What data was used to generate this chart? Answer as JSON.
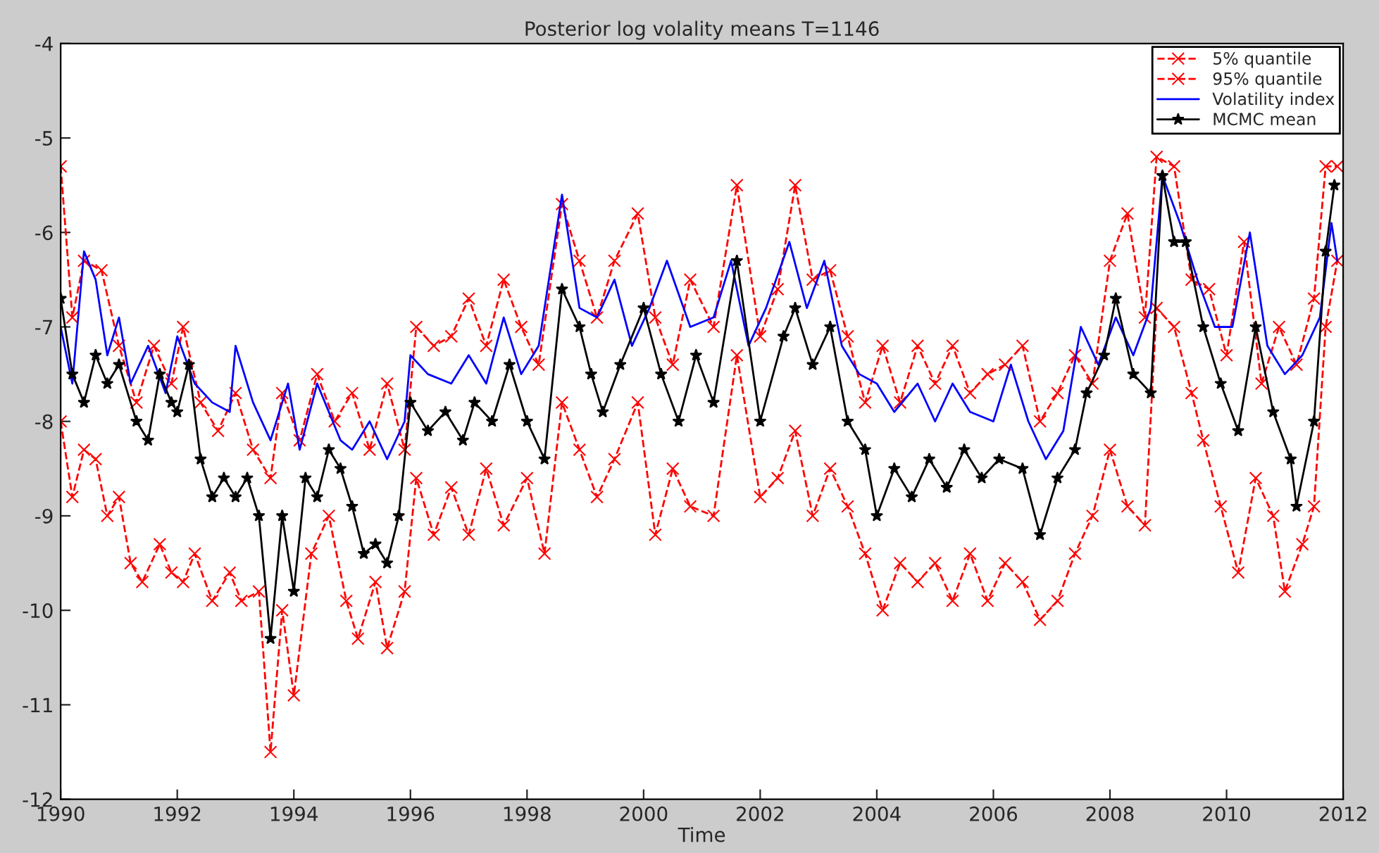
{
  "chart_data": {
    "type": "line",
    "title": "Posterior log volality means T=1146",
    "xlabel": "Time",
    "xlim": [
      1990,
      2012
    ],
    "xticks": [
      1990,
      1992,
      1994,
      1996,
      1998,
      2000,
      2002,
      2004,
      2006,
      2008,
      2010,
      2012
    ],
    "ylim": [
      -12,
      -4
    ],
    "yticks": [
      -12,
      -11,
      -10,
      -9,
      -8,
      -7,
      -6,
      -5,
      -4
    ],
    "grid": false,
    "legend": "top right",
    "series": [
      {
        "name": "5% quantile",
        "color": "#ff0000",
        "marker": "cross",
        "line_style": "dashed",
        "x": [
          1990.0,
          1990.2,
          1990.4,
          1990.6,
          1990.8,
          1991.0,
          1991.2,
          1991.4,
          1991.7,
          1991.9,
          1992.1,
          1992.3,
          1992.6,
          1992.9,
          1993.1,
          1993.4,
          1993.6,
          1993.8,
          1994.0,
          1994.3,
          1994.6,
          1994.9,
          1995.1,
          1995.4,
          1995.6,
          1995.9,
          1996.1,
          1996.4,
          1996.7,
          1997.0,
          1997.3,
          1997.6,
          1998.0,
          1998.3,
          1998.6,
          1998.9,
          1999.2,
          1999.5,
          1999.9,
          2000.2,
          2000.5,
          2000.8,
          2001.2,
          2001.6,
          2002.0,
          2002.3,
          2002.6,
          2002.9,
          2003.2,
          2003.5,
          2003.8,
          2004.1,
          2004.4,
          2004.7,
          2005.0,
          2005.3,
          2005.6,
          2005.9,
          2006.2,
          2006.5,
          2006.8,
          2007.1,
          2007.4,
          2007.7,
          2008.0,
          2008.3,
          2008.6,
          2008.8,
          2009.1,
          2009.4,
          2009.6,
          2009.9,
          2010.2,
          2010.5,
          2010.8,
          2011.0,
          2011.3,
          2011.5,
          2011.7,
          2011.9
        ],
        "values": [
          -8.0,
          -8.8,
          -8.3,
          -8.4,
          -9.0,
          -8.8,
          -9.5,
          -9.7,
          -9.3,
          -9.6,
          -9.7,
          -9.4,
          -9.9,
          -9.6,
          -9.9,
          -9.8,
          -11.5,
          -10.0,
          -10.9,
          -9.4,
          -9.0,
          -9.9,
          -10.3,
          -9.7,
          -10.4,
          -9.8,
          -8.6,
          -9.2,
          -8.7,
          -9.2,
          -8.5,
          -9.1,
          -8.6,
          -9.4,
          -7.8,
          -8.3,
          -8.8,
          -8.4,
          -7.8,
          -9.2,
          -8.5,
          -8.9,
          -9.0,
          -7.3,
          -8.8,
          -8.6,
          -8.1,
          -9.0,
          -8.5,
          -8.9,
          -9.4,
          -10.0,
          -9.5,
          -9.7,
          -9.5,
          -9.9,
          -9.4,
          -9.9,
          -9.5,
          -9.7,
          -10.1,
          -9.9,
          -9.4,
          -9.0,
          -8.3,
          -8.9,
          -9.1,
          -6.8,
          -7.0,
          -7.7,
          -8.2,
          -8.9,
          -9.6,
          -8.6,
          -9.0,
          -9.8,
          -9.3,
          -8.9,
          -7.0,
          -6.3
        ]
      },
      {
        "name": "95% quantile",
        "color": "#ff0000",
        "marker": "cross",
        "line_style": "dashed",
        "x": [
          1990.0,
          1990.2,
          1990.4,
          1990.7,
          1991.0,
          1991.3,
          1991.6,
          1991.9,
          1992.1,
          1992.4,
          1992.7,
          1993.0,
          1993.3,
          1993.6,
          1993.8,
          1994.1,
          1994.4,
          1994.7,
          1995.0,
          1995.3,
          1995.6,
          1995.9,
          1996.1,
          1996.4,
          1996.7,
          1997.0,
          1997.3,
          1997.6,
          1997.9,
          1998.2,
          1998.6,
          1998.9,
          1999.2,
          1999.5,
          1999.9,
          2000.2,
          2000.5,
          2000.8,
          2001.2,
          2001.6,
          2002.0,
          2002.3,
          2002.6,
          2002.9,
          2003.2,
          2003.5,
          2003.8,
          2004.1,
          2004.4,
          2004.7,
          2005.0,
          2005.3,
          2005.6,
          2005.9,
          2006.2,
          2006.5,
          2006.8,
          2007.1,
          2007.4,
          2007.7,
          2008.0,
          2008.3,
          2008.6,
          2008.8,
          2009.1,
          2009.4,
          2009.7,
          2010.0,
          2010.3,
          2010.6,
          2010.9,
          2011.2,
          2011.5,
          2011.7,
          2011.9
        ],
        "values": [
          -5.3,
          -6.9,
          -6.3,
          -6.4,
          -7.2,
          -7.8,
          -7.2,
          -7.6,
          -7.0,
          -7.8,
          -8.1,
          -7.7,
          -8.3,
          -8.6,
          -7.7,
          -8.2,
          -7.5,
          -8.0,
          -7.7,
          -8.3,
          -7.6,
          -8.3,
          -7.0,
          -7.2,
          -7.1,
          -6.7,
          -7.2,
          -6.5,
          -7.0,
          -7.4,
          -5.7,
          -6.3,
          -6.9,
          -6.3,
          -5.8,
          -6.9,
          -7.4,
          -6.5,
          -7.0,
          -5.5,
          -7.1,
          -6.6,
          -5.5,
          -6.5,
          -6.4,
          -7.1,
          -7.8,
          -7.2,
          -7.8,
          -7.2,
          -7.6,
          -7.2,
          -7.7,
          -7.5,
          -7.4,
          -7.2,
          -8.0,
          -7.7,
          -7.3,
          -7.6,
          -6.3,
          -5.8,
          -6.9,
          -5.2,
          -5.3,
          -6.5,
          -6.6,
          -7.3,
          -6.1,
          -7.6,
          -7.0,
          -7.4,
          -6.7,
          -5.3,
          -5.3
        ]
      },
      {
        "name": "Volatility index",
        "color": "#0000ff",
        "marker": "none",
        "line_style": "solid",
        "x": [
          1990.0,
          1990.2,
          1990.4,
          1990.6,
          1990.8,
          1991.0,
          1991.2,
          1991.5,
          1991.8,
          1992.0,
          1992.3,
          1992.6,
          1992.9,
          1993.0,
          1993.3,
          1993.6,
          1993.9,
          1994.1,
          1994.4,
          1994.8,
          1995.0,
          1995.3,
          1995.6,
          1995.9,
          1996.0,
          1996.3,
          1996.7,
          1997.0,
          1997.3,
          1997.6,
          1997.9,
          1998.2,
          1998.6,
          1998.9,
          1999.2,
          1999.5,
          1999.8,
          2000.1,
          2000.4,
          2000.8,
          2001.2,
          2001.5,
          2001.8,
          2002.1,
          2002.5,
          2002.8,
          2003.1,
          2003.4,
          2003.7,
          2004.0,
          2004.3,
          2004.7,
          2005.0,
          2005.3,
          2005.6,
          2006.0,
          2006.3,
          2006.6,
          2006.9,
          2007.2,
          2007.5,
          2007.8,
          2008.1,
          2008.4,
          2008.7,
          2008.9,
          2009.2,
          2009.5,
          2009.8,
          2010.1,
          2010.4,
          2010.7,
          2011.0,
          2011.3,
          2011.6,
          2011.8,
          2011.9
        ],
        "values": [
          -7.0,
          -7.6,
          -6.2,
          -6.5,
          -7.3,
          -6.9,
          -7.6,
          -7.2,
          -7.7,
          -7.1,
          -7.6,
          -7.8,
          -7.9,
          -7.2,
          -7.8,
          -8.2,
          -7.6,
          -8.3,
          -7.6,
          -8.2,
          -8.3,
          -8.0,
          -8.4,
          -8.0,
          -7.3,
          -7.5,
          -7.6,
          -7.3,
          -7.6,
          -6.9,
          -7.5,
          -7.2,
          -5.6,
          -6.8,
          -6.9,
          -6.5,
          -7.2,
          -6.8,
          -6.3,
          -7.0,
          -6.9,
          -6.3,
          -7.2,
          -6.8,
          -6.1,
          -6.8,
          -6.3,
          -7.2,
          -7.5,
          -7.6,
          -7.9,
          -7.6,
          -8.0,
          -7.6,
          -7.9,
          -8.0,
          -7.4,
          -8.0,
          -8.4,
          -8.1,
          -7.0,
          -7.4,
          -6.9,
          -7.3,
          -6.8,
          -5.4,
          -5.9,
          -6.5,
          -7.0,
          -7.0,
          -6.0,
          -7.2,
          -7.5,
          -7.3,
          -6.9,
          -5.9,
          -6.3
        ]
      },
      {
        "name": "MCMC mean",
        "color": "#000000",
        "marker": "star",
        "line_style": "solid",
        "x": [
          1990.0,
          1990.2,
          1990.4,
          1990.6,
          1990.8,
          1991.0,
          1991.3,
          1991.5,
          1991.7,
          1991.9,
          1992.0,
          1992.2,
          1992.4,
          1992.6,
          1992.8,
          1993.0,
          1993.2,
          1993.4,
          1993.6,
          1993.8,
          1994.0,
          1994.2,
          1994.4,
          1994.6,
          1994.8,
          1995.0,
          1995.2,
          1995.4,
          1995.6,
          1995.8,
          1996.0,
          1996.3,
          1996.6,
          1996.9,
          1997.1,
          1997.4,
          1997.7,
          1998.0,
          1998.3,
          1998.6,
          1998.9,
          1999.1,
          1999.3,
          1999.6,
          2000.0,
          2000.3,
          2000.6,
          2000.9,
          2001.2,
          2001.6,
          2002.0,
          2002.4,
          2002.6,
          2002.9,
          2003.2,
          2003.5,
          2003.8,
          2004.0,
          2004.3,
          2004.6,
          2004.9,
          2005.2,
          2005.5,
          2005.8,
          2006.1,
          2006.5,
          2006.8,
          2007.1,
          2007.4,
          2007.6,
          2007.9,
          2008.1,
          2008.4,
          2008.7,
          2008.9,
          2009.1,
          2009.3,
          2009.6,
          2009.9,
          2010.2,
          2010.5,
          2010.8,
          2011.1,
          2011.2,
          2011.5,
          2011.7,
          2011.85
        ],
        "values": [
          -6.7,
          -7.5,
          -7.8,
          -7.3,
          -7.6,
          -7.4,
          -8.0,
          -8.2,
          -7.5,
          -7.8,
          -7.9,
          -7.4,
          -8.4,
          -8.8,
          -8.6,
          -8.8,
          -8.6,
          -9.0,
          -10.3,
          -9.0,
          -9.8,
          -8.6,
          -8.8,
          -8.3,
          -8.5,
          -8.9,
          -9.4,
          -9.3,
          -9.5,
          -9.0,
          -7.8,
          -8.1,
          -7.9,
          -8.2,
          -7.8,
          -8.0,
          -7.4,
          -8.0,
          -8.4,
          -6.6,
          -7.0,
          -7.5,
          -7.9,
          -7.4,
          -6.8,
          -7.5,
          -8.0,
          -7.3,
          -7.8,
          -6.3,
          -8.0,
          -7.1,
          -6.8,
          -7.4,
          -7.0,
          -8.0,
          -8.3,
          -9.0,
          -8.5,
          -8.8,
          -8.4,
          -8.7,
          -8.3,
          -8.6,
          -8.4,
          -8.5,
          -9.2,
          -8.6,
          -8.3,
          -7.7,
          -7.3,
          -6.7,
          -7.5,
          -7.7,
          -5.4,
          -6.1,
          -6.1,
          -7.0,
          -7.6,
          -8.1,
          -7.0,
          -7.9,
          -8.4,
          -8.9,
          -8.0,
          -6.2,
          -5.5
        ]
      }
    ]
  }
}
